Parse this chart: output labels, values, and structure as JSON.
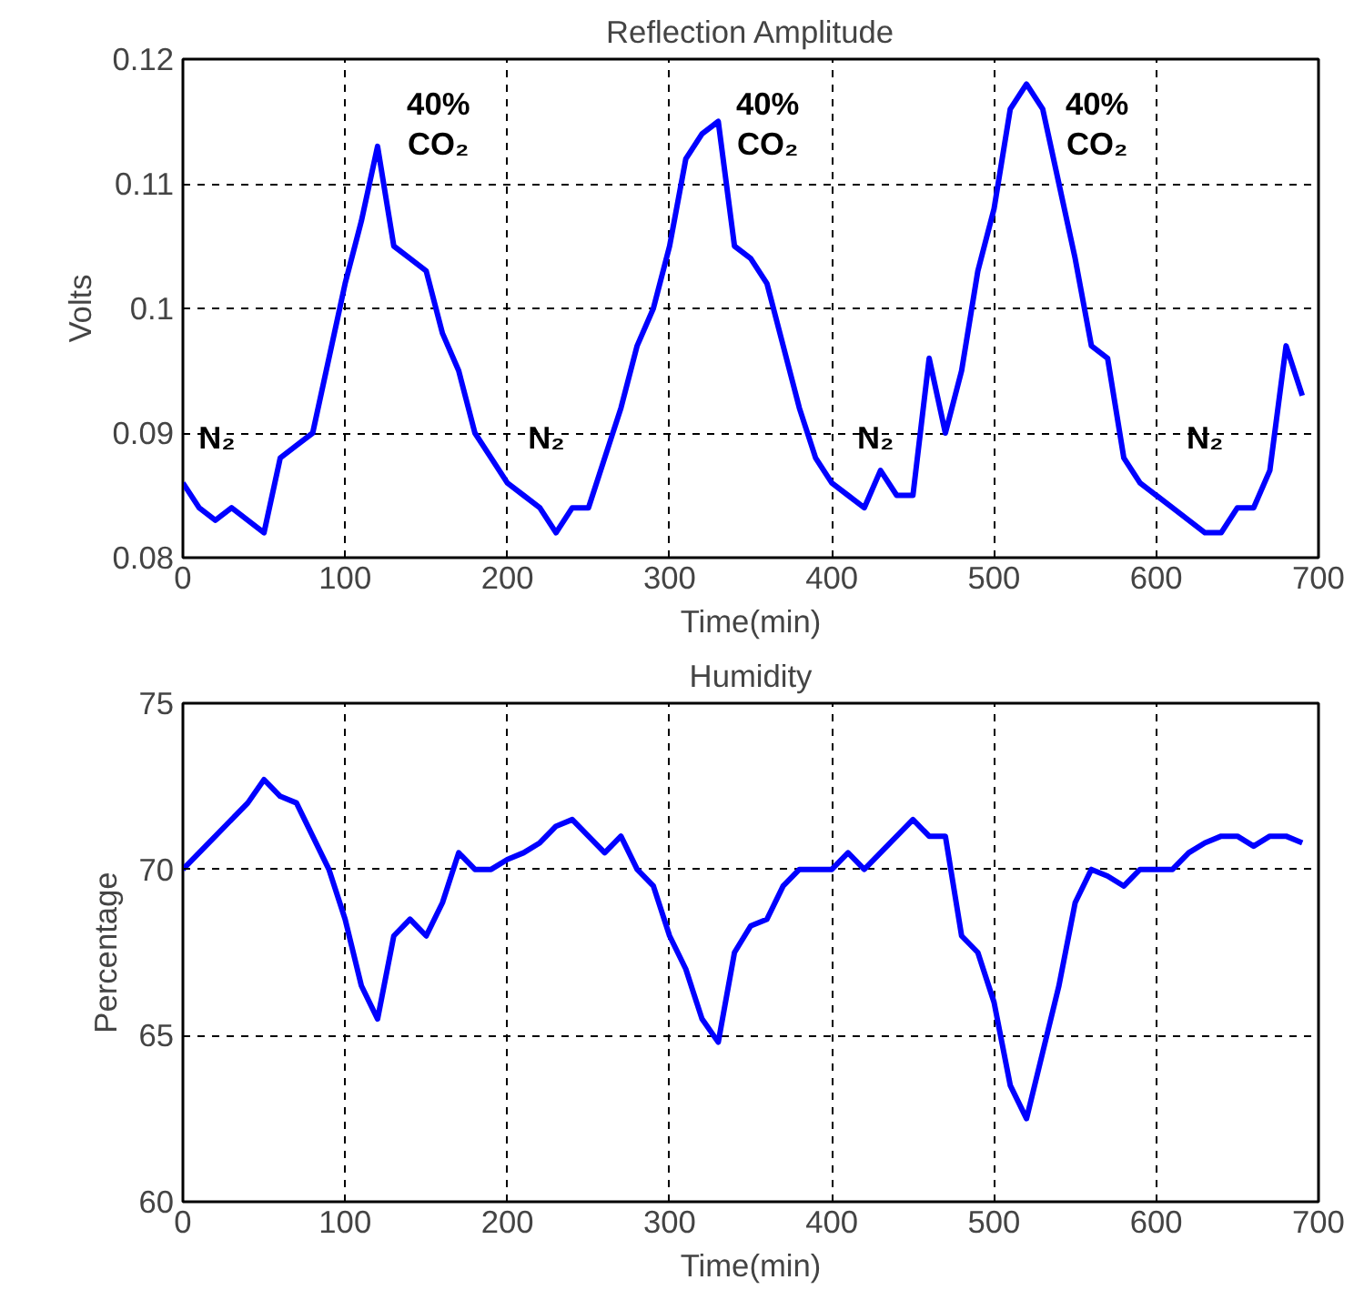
{
  "chart_data": [
    {
      "type": "line",
      "title": "Reflection Amplitude",
      "xlabel": "Time(min)",
      "ylabel": "Volts",
      "xlim": [
        0,
        700
      ],
      "ylim": [
        0.08,
        0.12
      ],
      "xticks": [
        0,
        100,
        200,
        300,
        400,
        500,
        600,
        700
      ],
      "yticks": [
        0.08,
        0.09,
        {
          "value": 0.1,
          "label": "0.1"
        },
        0.11,
        0.12
      ],
      "grid": true,
      "x": [
        0,
        10,
        20,
        30,
        40,
        50,
        60,
        70,
        80,
        90,
        100,
        110,
        120,
        130,
        140,
        150,
        160,
        170,
        180,
        190,
        200,
        210,
        220,
        230,
        240,
        250,
        260,
        270,
        280,
        290,
        300,
        310,
        320,
        330,
        340,
        350,
        360,
        370,
        380,
        390,
        400,
        410,
        420,
        430,
        440,
        450,
        460,
        470,
        480,
        490,
        500,
        510,
        520,
        530,
        540,
        550,
        560,
        570,
        580,
        590,
        600,
        610,
        620,
        630,
        640,
        650,
        660,
        670,
        680,
        690
      ],
      "series": [
        {
          "color": "#0000ff",
          "values": [
            0.086,
            0.084,
            0.083,
            0.084,
            0.083,
            0.082,
            0.088,
            0.089,
            0.09,
            0.096,
            0.102,
            0.107,
            0.113,
            0.105,
            0.104,
            0.103,
            0.098,
            0.095,
            0.09,
            0.088,
            0.086,
            0.085,
            0.084,
            0.082,
            0.084,
            0.084,
            0.088,
            0.092,
            0.097,
            0.1,
            0.105,
            0.112,
            0.114,
            0.115,
            0.105,
            0.104,
            0.102,
            0.097,
            0.092,
            0.088,
            0.086,
            0.085,
            0.084,
            0.087,
            0.085,
            0.085,
            0.096,
            0.09,
            0.095,
            0.103,
            0.108,
            0.116,
            0.118,
            0.116,
            0.11,
            0.104,
            0.097,
            0.096,
            0.088,
            0.086,
            0.085,
            0.084,
            0.083,
            0.082,
            0.082,
            0.084,
            0.084,
            0.087,
            0.097,
            0.093
          ]
        }
      ],
      "annotations": [
        "N₂",
        "40%\nCO₂",
        "N₂",
        "40%\nCO₂",
        "N₂",
        "40%\nCO₂",
        "N₂"
      ]
    },
    {
      "type": "line",
      "title": "Humidity",
      "xlabel": "Time(min)",
      "ylabel": "Percentage",
      "xlim": [
        0,
        700
      ],
      "ylim": [
        60,
        75
      ],
      "xticks": [
        0,
        100,
        200,
        300,
        400,
        500,
        600,
        700
      ],
      "yticks": [
        60,
        65,
        70,
        75
      ],
      "grid": true,
      "x": [
        0,
        10,
        20,
        30,
        40,
        50,
        60,
        70,
        80,
        90,
        100,
        110,
        120,
        130,
        140,
        150,
        160,
        170,
        180,
        190,
        200,
        210,
        220,
        230,
        240,
        250,
        260,
        270,
        280,
        290,
        300,
        310,
        320,
        330,
        340,
        350,
        360,
        370,
        380,
        390,
        400,
        410,
        420,
        430,
        440,
        450,
        460,
        470,
        480,
        490,
        500,
        510,
        520,
        530,
        540,
        550,
        560,
        570,
        580,
        590,
        600,
        610,
        620,
        630,
        640,
        650,
        660,
        670,
        680,
        690
      ],
      "series": [
        {
          "color": "#0000ff",
          "values": [
            70,
            70.5,
            71,
            71.5,
            72,
            72.7,
            72.2,
            72,
            71,
            70,
            68.5,
            66.5,
            65.5,
            68,
            68.5,
            68,
            69,
            70.5,
            70,
            70,
            70.3,
            70.5,
            70.8,
            71.3,
            71.5,
            71,
            70.5,
            71,
            70,
            69.5,
            68,
            67,
            65.5,
            64.8,
            67.5,
            68.3,
            68.5,
            69.5,
            70,
            70,
            70,
            70.5,
            70,
            70.5,
            71,
            71.5,
            71,
            71,
            68,
            67.5,
            66,
            63.5,
            62.5,
            64.5,
            66.5,
            69,
            70,
            69.8,
            69.5,
            70,
            70,
            70,
            70.5,
            70.8,
            71,
            71,
            70.7,
            71,
            71,
            70.8
          ]
        }
      ]
    }
  ]
}
